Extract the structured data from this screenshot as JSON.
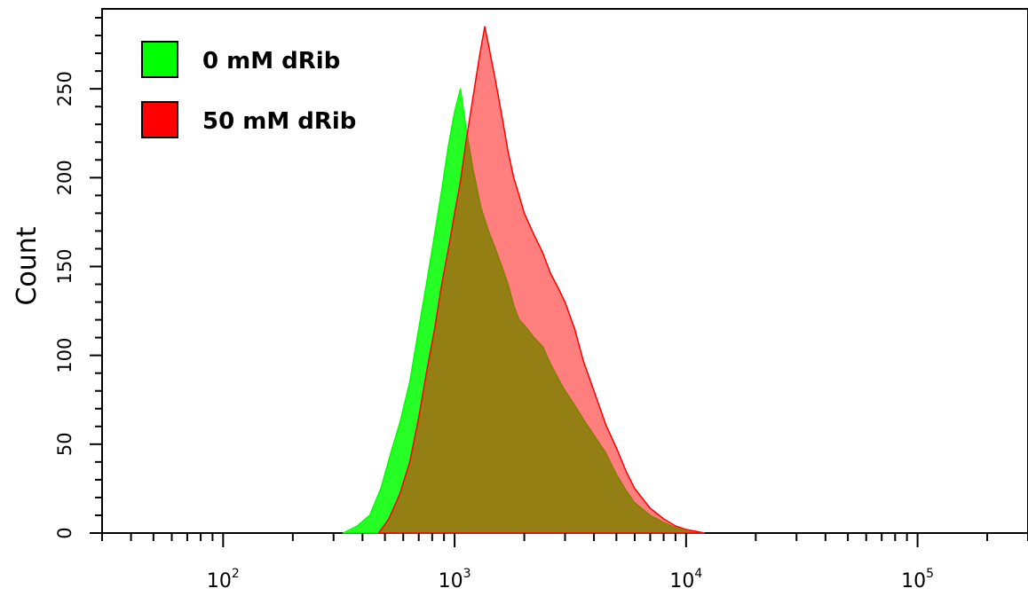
{
  "chart_data": {
    "type": "area",
    "title": "",
    "xlabel": "",
    "ylabel": "Count",
    "x_scale": "log",
    "xlim": [
      30,
      300000
    ],
    "ylim": [
      0,
      295
    ],
    "x_ticks": [
      {
        "value": 100,
        "base": "10",
        "exp": "2"
      },
      {
        "value": 1000,
        "base": "10",
        "exp": "3"
      },
      {
        "value": 10000,
        "base": "10",
        "exp": "4"
      },
      {
        "value": 100000,
        "base": "10",
        "exp": "5"
      }
    ],
    "y_ticks": [
      {
        "value": 0,
        "label": "0"
      },
      {
        "value": 50,
        "label": "50"
      },
      {
        "value": 100,
        "label": "100"
      },
      {
        "value": 150,
        "label": "150"
      },
      {
        "value": 200,
        "label": "200"
      },
      {
        "value": 250,
        "label": "250"
      }
    ],
    "grid": false,
    "legend_position": "top-left",
    "series": [
      {
        "name": "0 mM dRib",
        "color": "#00ff00",
        "x": [
          330,
          380,
          430,
          480,
          530,
          580,
          640,
          700,
          760,
          820,
          880,
          940,
          1000,
          1060,
          1120,
          1200,
          1300,
          1400,
          1500,
          1600,
          1700,
          1800,
          1900,
          2000,
          2200,
          2400,
          2600,
          2800,
          3000,
          3300,
          3600,
          4000,
          4500,
          5000,
          5500,
          6000,
          7000,
          8000,
          9000,
          10000,
          11000,
          12000
        ],
        "values": [
          0,
          4,
          10,
          25,
          45,
          62,
          85,
          115,
          142,
          168,
          193,
          218,
          237,
          250,
          228,
          205,
          183,
          170,
          160,
          150,
          140,
          128,
          120,
          117,
          110,
          105,
          95,
          87,
          80,
          72,
          64,
          55,
          45,
          33,
          24,
          17,
          10,
          6,
          3,
          1,
          0,
          0
        ]
      },
      {
        "name": "50 mM dRib",
        "color": "#ff0000",
        "x": [
          470,
          520,
          580,
          640,
          700,
          760,
          820,
          880,
          940,
          1000,
          1060,
          1120,
          1200,
          1280,
          1350,
          1400,
          1500,
          1600,
          1700,
          1800,
          1900,
          2000,
          2200,
          2400,
          2600,
          2800,
          3000,
          3300,
          3600,
          4000,
          4500,
          5000,
          5500,
          6000,
          7000,
          8000,
          9000,
          10000,
          11000,
          12000
        ],
        "values": [
          0,
          8,
          22,
          40,
          65,
          92,
          115,
          140,
          160,
          180,
          198,
          220,
          245,
          268,
          285,
          275,
          255,
          235,
          215,
          200,
          190,
          180,
          168,
          158,
          146,
          138,
          130,
          115,
          97,
          80,
          61,
          48,
          35,
          25,
          14,
          8,
          4,
          2,
          1,
          0
        ]
      }
    ]
  }
}
